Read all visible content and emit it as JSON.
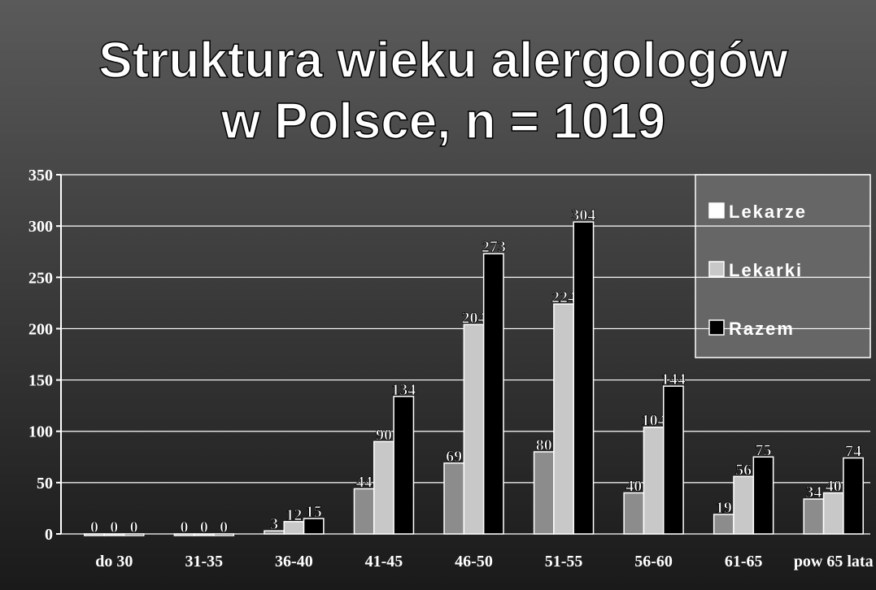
{
  "chart_data": {
    "type": "bar",
    "title": [
      "Struktura wieku alergologów",
      "w Polsce, n = 1019"
    ],
    "categories": [
      "do 30",
      "31-35",
      "36-40",
      "41-45",
      "46-50",
      "51-55",
      "56-60",
      "61-65",
      "pow 65 lata"
    ],
    "series": [
      {
        "name": "Lekarze",
        "color": "#8c8c8c",
        "values": [
          0,
          0,
          3,
          44,
          69,
          80,
          40,
          19,
          34
        ]
      },
      {
        "name": "Lekarki",
        "color": "#c8c8c8",
        "values": [
          0,
          0,
          12,
          90,
          204,
          224,
          104,
          56,
          40
        ]
      },
      {
        "name": "Razem",
        "color": "#000000",
        "values": [
          0,
          0,
          15,
          134,
          273,
          304,
          144,
          75,
          74
        ]
      }
    ],
    "ylim": [
      0,
      350
    ],
    "yticks": [
      0,
      50,
      100,
      150,
      200,
      250,
      300,
      350
    ],
    "grid": true,
    "legend": "top-right"
  }
}
